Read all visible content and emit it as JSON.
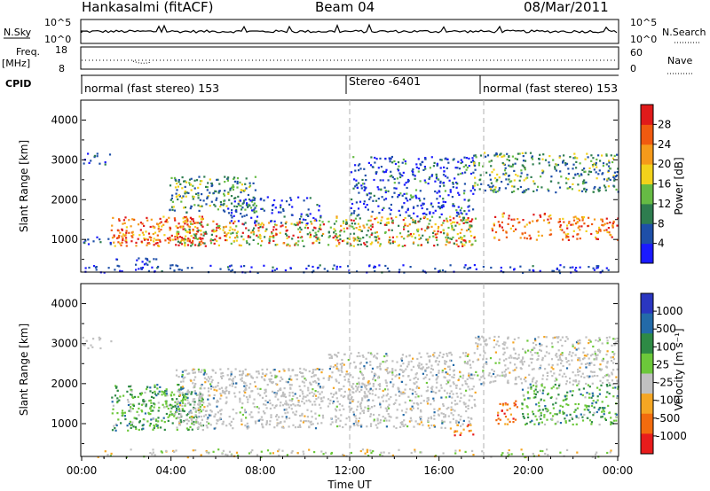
{
  "header": {
    "station": "Hankasalmi (fitACF)",
    "beam": "Beam 04",
    "date": "08/Mar/2011"
  },
  "strip_labels": {
    "nsky": "N.Sky",
    "nsky_ticks": [
      "10^5",
      "10^0"
    ],
    "nsearch": "N.Search",
    "nsearch_ticks": [
      "10^5",
      "10^0"
    ],
    "freq": "Freq.",
    "freq_unit": "[MHz]",
    "freq_ticks": [
      "18",
      "8"
    ],
    "nave": "Nave",
    "nave_ticks": [
      "60",
      "0"
    ],
    "cpid": "CPID"
  },
  "cpid_segments": [
    {
      "label": "normal (fast stereo) 153",
      "start_hour": 0
    },
    {
      "label": "Stereo -6401",
      "start_hour": 12
    },
    {
      "label": "normal (fast stereo) 153",
      "start_hour": 18
    }
  ],
  "axes": {
    "xlabel": "Time UT",
    "x_ticks": [
      "00:00",
      "04:00",
      "08:00",
      "12:00",
      "16:00",
      "20:00",
      "00:00"
    ],
    "ylabel": "Slant Range [km]",
    "y_ticks": [
      "1000",
      "2000",
      "3000",
      "4000"
    ]
  },
  "power_colorbar": {
    "label": "Power [dB]",
    "ticks": [
      "4",
      "8",
      "12",
      "16",
      "20",
      "24",
      "28"
    ],
    "colors": [
      "#1a1aff",
      "#1e4fa8",
      "#2e7d4f",
      "#66bb44",
      "#f2d21b",
      "#f59a1a",
      "#f05a10",
      "#e01a1a"
    ]
  },
  "velocity_colorbar": {
    "label": "Velocity [m s⁻¹]",
    "ticks": [
      "1000",
      "500",
      "100",
      "25",
      "-25",
      "-100",
      "-500",
      "-1000"
    ],
    "colors": [
      "#2a36c0",
      "#236aa8",
      "#2e8a45",
      "#6cc83a",
      "#c0c0c0",
      "#f5a623",
      "#f26b0e",
      "#e81c1c"
    ]
  },
  "chart_data": [
    {
      "type": "heatmap",
      "title": "Power",
      "xlabel": "Time UT",
      "ylabel": "Slant Range [km]",
      "xlim": [
        0,
        24
      ],
      "ylim": [
        180,
        4500
      ],
      "colorbar_label": "Power [dB]",
      "colorbar_range": [
        0,
        30
      ],
      "scatter_regions": [
        {
          "x": [
            3.9,
            7.8
          ],
          "y": [
            1700,
            2600
          ],
          "values": "12-24 dB"
        },
        {
          "x": [
            1.3,
            5.4
          ],
          "y": [
            850,
            1600
          ],
          "values": "16-28 dB"
        },
        {
          "x": [
            4.2,
            10.8
          ],
          "y": [
            850,
            1500
          ],
          "values": "20-28 dB"
        },
        {
          "x": [
            11.0,
            17.6
          ],
          "y": [
            850,
            1600
          ],
          "values": "16-28 dB"
        },
        {
          "x": [
            12.0,
            17.5
          ],
          "y": [
            1600,
            3100
          ],
          "values": "4-20 dB"
        },
        {
          "x": [
            17.5,
            24.0
          ],
          "y": [
            2200,
            3200
          ],
          "values": "8-20 dB"
        },
        {
          "x": [
            21.3,
            24.0
          ],
          "y": [
            1000,
            1600
          ],
          "values": "20-28 dB"
        }
      ]
    },
    {
      "type": "heatmap",
      "title": "Velocity",
      "xlabel": "Time UT",
      "ylabel": "Slant Range [km]",
      "xlim": [
        0,
        24
      ],
      "ylim": [
        180,
        4500
      ],
      "colorbar_label": "Velocity [m s-1]",
      "colorbar_range": [
        -1000,
        1000
      ],
      "scatter_regions": [
        {
          "x": [
            1.3,
            5.4
          ],
          "y": [
            850,
            2000
          ],
          "values": "+100 to +500 m/s"
        },
        {
          "x": [
            4.2,
            10.8
          ],
          "y": [
            900,
            2400
          ],
          "values": "-25 to 25 m/s"
        },
        {
          "x": [
            11.0,
            17.6
          ],
          "y": [
            900,
            2800
          ],
          "values": "-25 to 25 m/s"
        },
        {
          "x": [
            16.6,
            17.5
          ],
          "y": [
            700,
            1000
          ],
          "values": "-100 to -500 m/s"
        },
        {
          "x": [
            17.6,
            24.0
          ],
          "y": [
            2000,
            3200
          ],
          "values": "-25 to 25 m/s"
        },
        {
          "x": [
            19.6,
            24.0
          ],
          "y": [
            1000,
            2000
          ],
          "values": "+100 to +500 m/s"
        }
      ]
    }
  ]
}
